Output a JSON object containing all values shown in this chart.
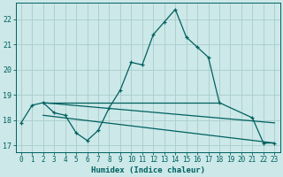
{
  "xlabel": "Humidex (Indice chaleur)",
  "background_color": "#cce8e8",
  "grid_color": "#aacccc",
  "line_color": "#006060",
  "xlim": [
    -0.5,
    23.5
  ],
  "ylim": [
    16.75,
    22.65
  ],
  "xticks": [
    0,
    1,
    2,
    3,
    4,
    5,
    6,
    7,
    8,
    9,
    10,
    11,
    12,
    13,
    14,
    15,
    16,
    17,
    18,
    19,
    20,
    21,
    22,
    23
  ],
  "yticks": [
    17,
    18,
    19,
    20,
    21,
    22
  ],
  "line1_x": [
    0,
    1,
    2,
    3,
    4,
    5,
    6,
    7,
    8,
    9,
    10,
    11,
    12,
    13,
    14,
    15,
    16,
    17,
    18,
    21,
    22,
    23
  ],
  "line1_y": [
    17.9,
    18.6,
    18.7,
    18.3,
    18.2,
    17.5,
    17.2,
    17.6,
    18.5,
    19.2,
    20.3,
    20.2,
    21.4,
    21.9,
    22.4,
    21.3,
    20.9,
    20.5,
    18.7,
    18.1,
    17.1,
    17.1
  ],
  "line2_x": [
    2,
    18
  ],
  "line2_y": [
    18.7,
    18.7
  ],
  "line3_x": [
    2,
    23
  ],
  "line3_y": [
    18.7,
    17.9
  ],
  "line4_x": [
    2,
    23
  ],
  "line4_y": [
    18.2,
    17.1
  ],
  "xlabel_fontsize": 6.5,
  "tick_fontsize": 5.5
}
